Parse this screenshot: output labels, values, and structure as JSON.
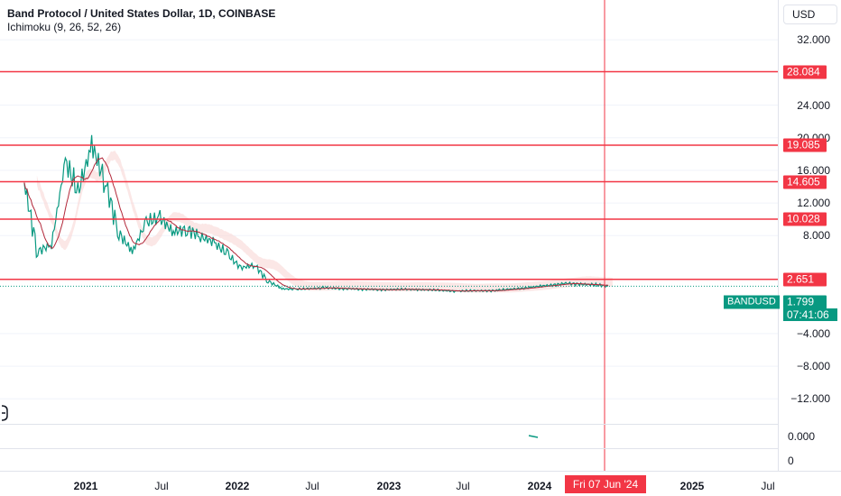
{
  "header": {
    "title": "Band Protocol / United States Dollar, 1D, COINBASE",
    "indicator": "Ichimoku (9, 26, 52, 26)"
  },
  "currency_button": "USD",
  "price_scale": {
    "ticks": [
      "32.000",
      "24.000",
      "20.000",
      "16.000",
      "12.000",
      "8.000",
      "−4.000",
      "−8.000",
      "−12.000"
    ]
  },
  "indicator_scale": {
    "ticks": [
      "0.000",
      "0"
    ]
  },
  "horizontal_levels": [
    {
      "value": "28.084",
      "color": "#f23645"
    },
    {
      "value": "19.085",
      "color": "#f23645"
    },
    {
      "value": "14.605",
      "color": "#f23645"
    },
    {
      "value": "10.028",
      "color": "#f23645"
    },
    {
      "value": "2.651",
      "color": "#f23645"
    }
  ],
  "last_price": {
    "symbol": "BANDUSD",
    "value": "1.799",
    "countdown": "07:41:06",
    "color": "#089981"
  },
  "time_axis": {
    "labels": [
      "2021",
      "Jul",
      "2022",
      "Jul",
      "2023",
      "Jul",
      "2024",
      "2025",
      "Jul"
    ],
    "crosshair_label": "Fri 07 Jun '24"
  },
  "colors": {
    "price_up": "#089981",
    "price_down": "#f23645",
    "cloud": "#f9d7d5",
    "grid": "#f0f3fa"
  },
  "chart_data": {
    "type": "line",
    "symbol": "BANDUSD",
    "x": [
      "2020-11",
      "2020-12",
      "2021-01",
      "2021-02",
      "2021-03",
      "2021-04",
      "2021-05",
      "2021-06",
      "2021-07",
      "2021-08",
      "2021-09",
      "2021-10",
      "2021-11",
      "2021-12",
      "2022-01",
      "2022-02",
      "2022-03",
      "2022-04",
      "2022-05",
      "2022-06",
      "2022-07",
      "2022-09",
      "2022-11",
      "2023-01",
      "2023-04",
      "2023-07",
      "2023-10",
      "2024-01",
      "2024-03",
      "2024-06"
    ],
    "series": [
      {
        "name": "BANDUSD",
        "values": [
          14.5,
          6.2,
          7.0,
          17.0,
          13.0,
          19.0,
          15.0,
          8.5,
          6.0,
          9.5,
          10.0,
          8.5,
          9.0,
          8.0,
          7.0,
          5.5,
          4.0,
          4.5,
          2.5,
          1.5,
          1.4,
          1.6,
          1.5,
          1.4,
          1.4,
          1.2,
          1.3,
          1.8,
          2.2,
          1.8
        ]
      }
    ],
    "horizontal_lines": [
      28.084,
      19.085,
      14.605,
      10.028,
      2.651
    ],
    "last_value": 1.799,
    "ylim": [
      -12,
      34
    ]
  }
}
